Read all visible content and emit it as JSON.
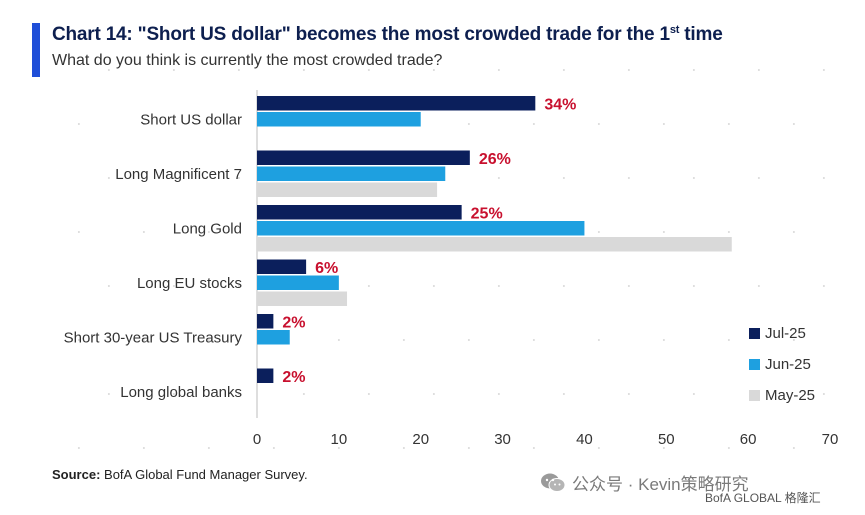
{
  "header": {
    "title_main": "Chart 14: \"Short US dollar\" becomes the most crowded trade for the 1",
    "title_sup": "st",
    "title_end": " time",
    "subtitle": "What do you think is currently the most crowded trade?"
  },
  "footer": {
    "source_label": "Source:",
    "source_text": " BofA Global Fund Manager Survey.",
    "watermark": "公众号 · Kevin策略研究",
    "brand": "BofA GLOBAL",
    "brand_tail": "格隆汇"
  },
  "colors": {
    "accent": "#1f4ed8",
    "jul": "#0b1f5c",
    "jun": "#1ea0e0",
    "may": "#d9d9d9",
    "label_red": "#c8102e"
  },
  "chart_data": {
    "type": "bar",
    "orientation": "horizontal",
    "categories": [
      "Short US dollar",
      "Long Magnificent 7",
      "Long Gold",
      "Long EU stocks",
      "Short 30-year US Treasury",
      "Long global banks"
    ],
    "series": [
      {
        "name": "Jul-25",
        "values": [
          34,
          26,
          25,
          6,
          2,
          2
        ],
        "color": "#0b1f5c",
        "labels": [
          "34%",
          "26%",
          "25%",
          "6%",
          "2%",
          "2%"
        ]
      },
      {
        "name": "Jun-25",
        "values": [
          20,
          23,
          40,
          10,
          4,
          null
        ],
        "color": "#1ea0e0"
      },
      {
        "name": "May-25",
        "values": [
          null,
          22,
          58,
          11,
          null,
          null
        ],
        "color": "#d9d9d9"
      }
    ],
    "xlim": [
      0,
      70
    ],
    "xticks": [
      0,
      10,
      20,
      30,
      40,
      50,
      60,
      70
    ],
    "legend_position": "bottom-right",
    "grid": false
  }
}
